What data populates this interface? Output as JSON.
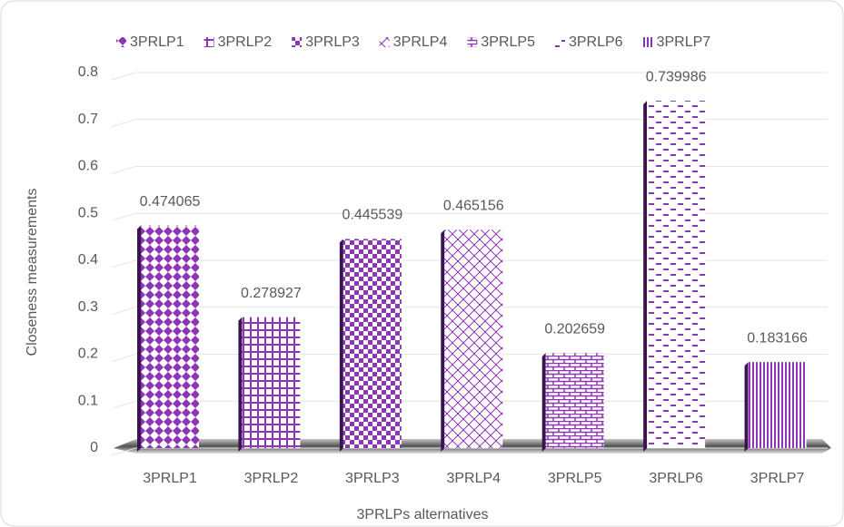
{
  "chart_data": {
    "type": "bar",
    "x_label": "3PRLPs alternatives",
    "y_label": "Closeness measurements",
    "categories": [
      "3PRLP1",
      "3PRLP2",
      "3PRLP3",
      "3PRLP4",
      "3PRLP5",
      "3PRLP6",
      "3PRLP7"
    ],
    "values": [
      0.474065,
      0.278927,
      0.445539,
      0.465156,
      0.202659,
      0.739986,
      0.183166
    ],
    "color": "#8e35b5",
    "ylim": [
      0,
      0.8
    ],
    "yticks": [
      0,
      0.1,
      0.2,
      0.3,
      0.4,
      0.5,
      0.6,
      0.7,
      0.8
    ],
    "grid": true,
    "legend": "top"
  }
}
